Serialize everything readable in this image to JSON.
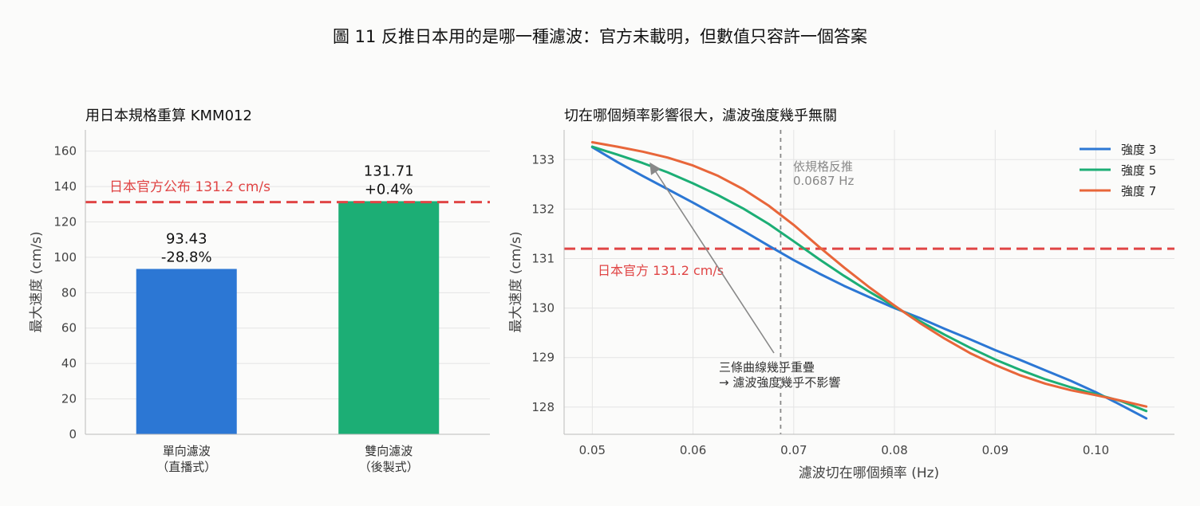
{
  "figure": {
    "title": "圖 11  反推日本用的是哪一種濾波：官方未載明，但數值只容許一個答案"
  },
  "colors": {
    "bar_one_way": "#2c77d4",
    "bar_two_way": "#1cae75",
    "official_line": "#e04545",
    "strength3": "#2c77d4",
    "strength5": "#1cae75",
    "strength7": "#e8663a",
    "vline": "#888888",
    "grid": "#e4e4e4"
  },
  "chart_data": [
    {
      "type": "bar",
      "title": "用日本規格重算 KMM012",
      "ylabel": "最大速度 (cm/s)",
      "ylim": [
        0,
        172
      ],
      "yticks": [
        "0",
        "20",
        "40",
        "60",
        "80",
        "100",
        "120",
        "140",
        "160"
      ],
      "categories": [
        [
          "單向濾波",
          "（直播式）"
        ],
        [
          "雙向濾波",
          "（後製式）"
        ]
      ],
      "values": [
        93.43,
        131.71
      ],
      "value_labels": [
        "93.43",
        "131.71"
      ],
      "pct_labels": [
        "-28.8%",
        "+0.4%"
      ],
      "reference": {
        "value": 131.2,
        "label": "日本官方公布 131.2 cm/s"
      }
    },
    {
      "type": "line",
      "title": "切在哪個頻率影響很大，濾波強度幾乎無關",
      "xlabel": "濾波切在哪個頻率 (Hz)",
      "ylabel": "最大速度 (cm/s)",
      "xlim": [
        0.0472,
        0.1078
      ],
      "ylim": [
        127.45,
        133.6
      ],
      "xticks": [
        "0.05",
        "0.06",
        "0.07",
        "0.08",
        "0.09",
        "0.10"
      ],
      "yticks": [
        "128",
        "129",
        "130",
        "131",
        "132",
        "133"
      ],
      "x": [
        0.05,
        0.0525,
        0.055,
        0.0575,
        0.06,
        0.0625,
        0.065,
        0.0675,
        0.07,
        0.0725,
        0.075,
        0.0775,
        0.08,
        0.0825,
        0.085,
        0.0875,
        0.09,
        0.0925,
        0.095,
        0.0975,
        0.1,
        0.1025,
        0.105
      ],
      "series": [
        {
          "name": "強度 3",
          "values": [
            133.25,
            132.95,
            132.67,
            132.4,
            132.13,
            131.85,
            131.56,
            131.26,
            130.97,
            130.7,
            130.45,
            130.22,
            130.0,
            129.8,
            129.58,
            129.37,
            129.15,
            128.95,
            128.74,
            128.53,
            128.3,
            128.04,
            127.77
          ]
        },
        {
          "name": "強度 5",
          "values": [
            133.26,
            133.1,
            132.93,
            132.74,
            132.52,
            132.28,
            132.01,
            131.7,
            131.35,
            130.99,
            130.65,
            130.33,
            130.03,
            129.74,
            129.46,
            129.2,
            128.96,
            128.75,
            128.56,
            128.4,
            128.26,
            128.12,
            127.92
          ]
        },
        {
          "name": "強度 7",
          "values": [
            133.35,
            133.26,
            133.16,
            133.04,
            132.88,
            132.67,
            132.4,
            132.07,
            131.68,
            131.24,
            130.82,
            130.42,
            130.05,
            129.7,
            129.38,
            129.09,
            128.85,
            128.64,
            128.47,
            128.34,
            128.24,
            128.13,
            128.01
          ]
        }
      ],
      "reference": {
        "value": 131.2,
        "label": "日本官方 131.2 cm/s"
      },
      "vline": {
        "x": 0.0687,
        "label_lines": [
          "依規格反推",
          "0.0687 Hz"
        ]
      },
      "annotation": {
        "lines": [
          "三條曲線幾乎重疊",
          "→ 濾波強度幾乎不影響"
        ]
      },
      "legend_position": "top-right"
    }
  ]
}
